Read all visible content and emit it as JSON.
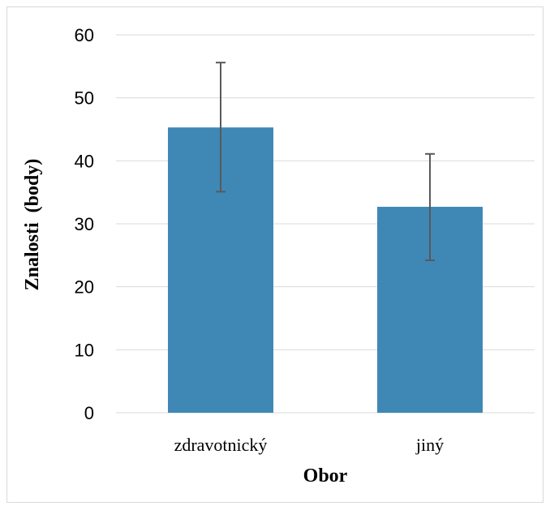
{
  "chart_data": {
    "type": "bar",
    "categories": [
      "zdravotnický",
      "jiný"
    ],
    "values": [
      45.3,
      32.7
    ],
    "error": [
      {
        "low": 35.1,
        "high": 55.6
      },
      {
        "low": 24.2,
        "high": 41.1
      }
    ],
    "xlabel": "Obor",
    "ylabel": "Znalosti  (body)",
    "ylim": [
      0,
      60
    ],
    "yticks": [
      0,
      10,
      20,
      30,
      40,
      50,
      60
    ],
    "grid": true,
    "legend": "none",
    "bar_color": "#3f88b6",
    "error_color": "#595959",
    "grid_color": "#d9d9d9"
  }
}
